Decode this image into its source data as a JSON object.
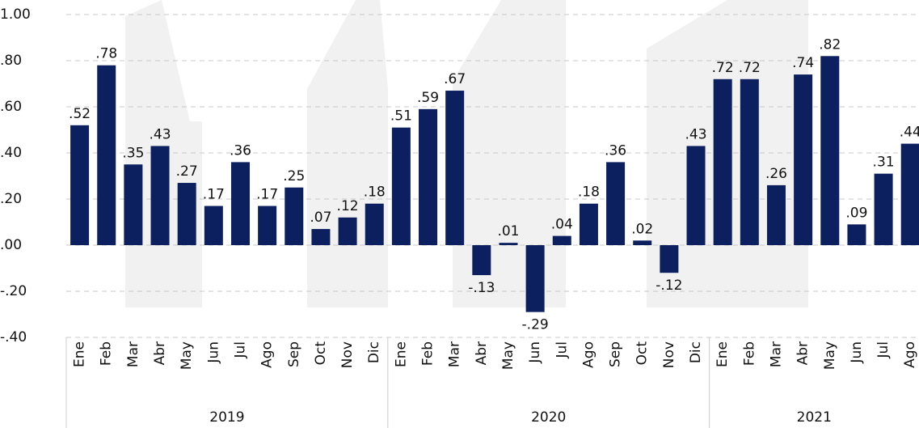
{
  "chart_data": {
    "type": "bar",
    "color": "#0c1f5e",
    "grid": true,
    "categories": [
      "Ene",
      "Feb",
      "Mar",
      "Abr",
      "May",
      "Jun",
      "Jul",
      "Ago",
      "Sep",
      "Oct",
      "Nov",
      "Dic",
      "Ene",
      "Feb",
      "Mar",
      "Abr",
      "May",
      "Jun",
      "Jul",
      "Ago",
      "Sep",
      "Oct",
      "Nov",
      "Dic",
      "Ene",
      "Feb",
      "Mar",
      "Abr",
      "May",
      "Jun",
      "Jul",
      "Ago"
    ],
    "groups": [
      {
        "label": "2019",
        "span": 12
      },
      {
        "label": "2020",
        "span": 12
      },
      {
        "label": "2021",
        "span": 8
      }
    ],
    "values": [
      0.52,
      0.78,
      0.35,
      0.43,
      0.27,
      0.17,
      0.36,
      0.17,
      0.25,
      0.07,
      0.12,
      0.18,
      0.51,
      0.59,
      0.67,
      -0.13,
      0.01,
      -0.29,
      0.04,
      0.18,
      0.36,
      0.02,
      -0.12,
      0.43,
      0.72,
      0.72,
      0.26,
      0.74,
      0.82,
      0.09,
      0.31,
      0.44
    ],
    "value_labels": [
      ".52",
      ".78",
      ".35",
      ".43",
      ".27",
      ".17",
      ".36",
      ".17",
      ".25",
      ".07",
      ".12",
      ".18",
      ".51",
      ".59",
      ".67",
      "-.13",
      ".01",
      "-.29",
      ".04",
      ".18",
      ".36",
      ".02",
      "-.12",
      ".43",
      ".72",
      ".72",
      ".26",
      ".74",
      ".82",
      ".09",
      ".31",
      ".44"
    ],
    "ylim": [
      -0.4,
      1.0
    ],
    "yticks": [
      {
        "value": -0.4,
        "label": "-.40"
      },
      {
        "value": -0.2,
        "label": "-.20"
      },
      {
        "value": 0,
        "label": ".00"
      },
      {
        "value": 0.2,
        "label": ".20"
      },
      {
        "value": 0.4,
        "label": ".40"
      },
      {
        "value": 0.6,
        "label": ".60"
      },
      {
        "value": 0.8,
        "label": ".80"
      },
      {
        "value": 1.0,
        "label": "1.00"
      }
    ]
  }
}
